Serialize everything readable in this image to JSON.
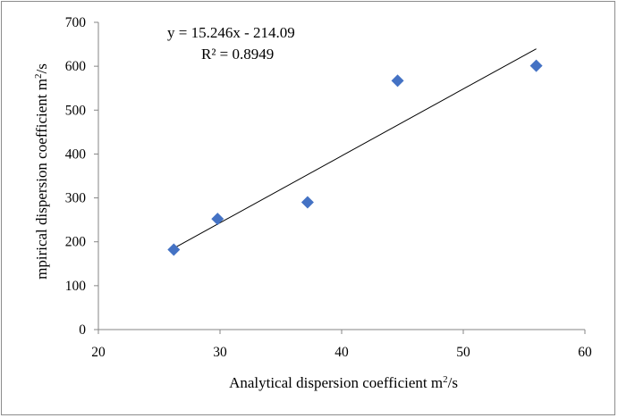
{
  "chart_data": {
    "type": "scatter",
    "title": "",
    "xlabel": "Analytical dispersion coefficient m",
    "xlabel_sup": "2",
    "xlabel_tail": "/s",
    "ylabel": "mpirical dispersion coefficient m",
    "ylabel_sup": "2",
    "ylabel_tail": "/s",
    "xlim": [
      20,
      60
    ],
    "ylim": [
      0,
      700
    ],
    "x_ticks": [
      "20",
      "30",
      "40",
      "50",
      "60"
    ],
    "y_ticks": [
      "0",
      "100",
      "200",
      "300",
      "400",
      "500",
      "600",
      "700"
    ],
    "grid": false,
    "legend": false,
    "marker": "diamond",
    "marker_color": "#4472c4",
    "series": [
      {
        "points": [
          {
            "x": 26.2,
            "y": 182
          },
          {
            "x": 29.8,
            "y": 252
          },
          {
            "x": 37.2,
            "y": 290
          },
          {
            "x": 44.6,
            "y": 567
          },
          {
            "x": 56.0,
            "y": 601
          }
        ]
      }
    ],
    "trendline": {
      "type": "linear",
      "slope": 15.246,
      "intercept": -214.09,
      "x_range": [
        26.2,
        56.0
      ],
      "color": "#000000"
    },
    "annotations": {
      "equation": "y = 15.246x - 214.09",
      "r_squared": "R² = 0.8949"
    }
  }
}
